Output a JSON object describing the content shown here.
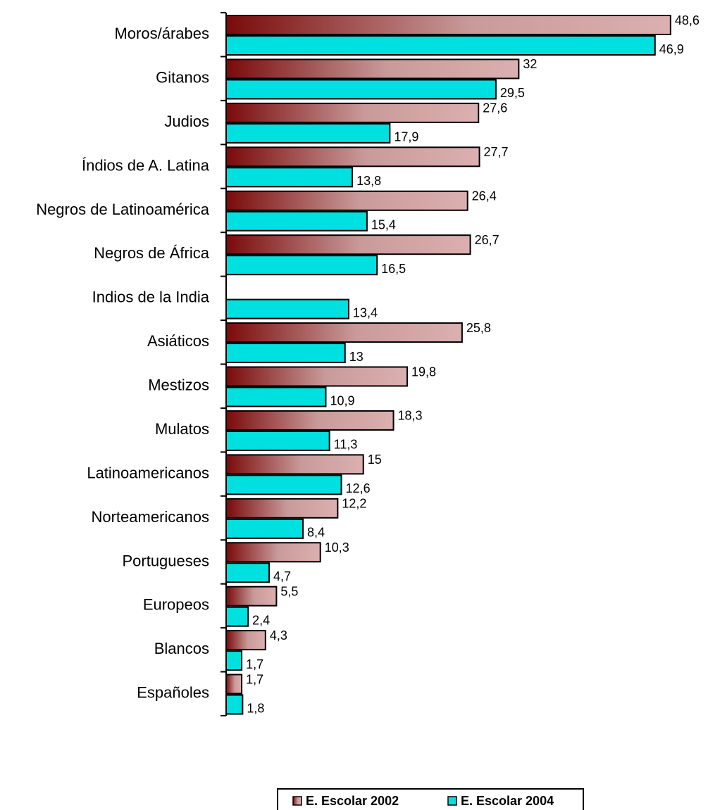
{
  "chart_data": {
    "type": "bar",
    "orientation": "horizontal",
    "categories": [
      "Moros/árabes",
      "Gitanos",
      "Judios",
      "Índios de A. Latina",
      "Negros de Latinoamérica",
      "Negros de África",
      "Indios de la India",
      "Asiáticos",
      "Mestizos",
      "Mulatos",
      "Latinoamericanos",
      "Norteamericanos",
      "Portugueses",
      "Europeos",
      "Blancos",
      "Españoles"
    ],
    "series": [
      {
        "name": "E. Escolar 2002",
        "color": "#7a0a0a",
        "values": [
          48.6,
          32,
          27.6,
          27.7,
          26.4,
          26.7,
          null,
          25.8,
          19.8,
          18.3,
          15,
          12.2,
          10.3,
          5.5,
          4.3,
          1.7
        ],
        "value_labels": [
          "48,6",
          "32",
          "27,6",
          "27,7",
          "26,4",
          "26,7",
          null,
          "25,8",
          "19,8",
          "18,3",
          "15",
          "12,2",
          "10,3",
          "5,5",
          "4,3",
          "1,7"
        ]
      },
      {
        "name": "E. Escolar 2004",
        "color": "#00e0e0",
        "values": [
          46.9,
          29.5,
          17.9,
          13.8,
          15.4,
          16.5,
          13.4,
          13,
          10.9,
          11.3,
          12.6,
          8.4,
          4.7,
          2.4,
          1.7,
          1.8
        ],
        "value_labels": [
          "46,9",
          "29,5",
          "17,9",
          "13,8",
          "15,4",
          "16,5",
          "13,4",
          "13",
          "10,9",
          "11,3",
          "12,6",
          "8,4",
          "4,7",
          "2,4",
          "1,7",
          "1,8"
        ]
      }
    ],
    "legend": "bottom"
  }
}
